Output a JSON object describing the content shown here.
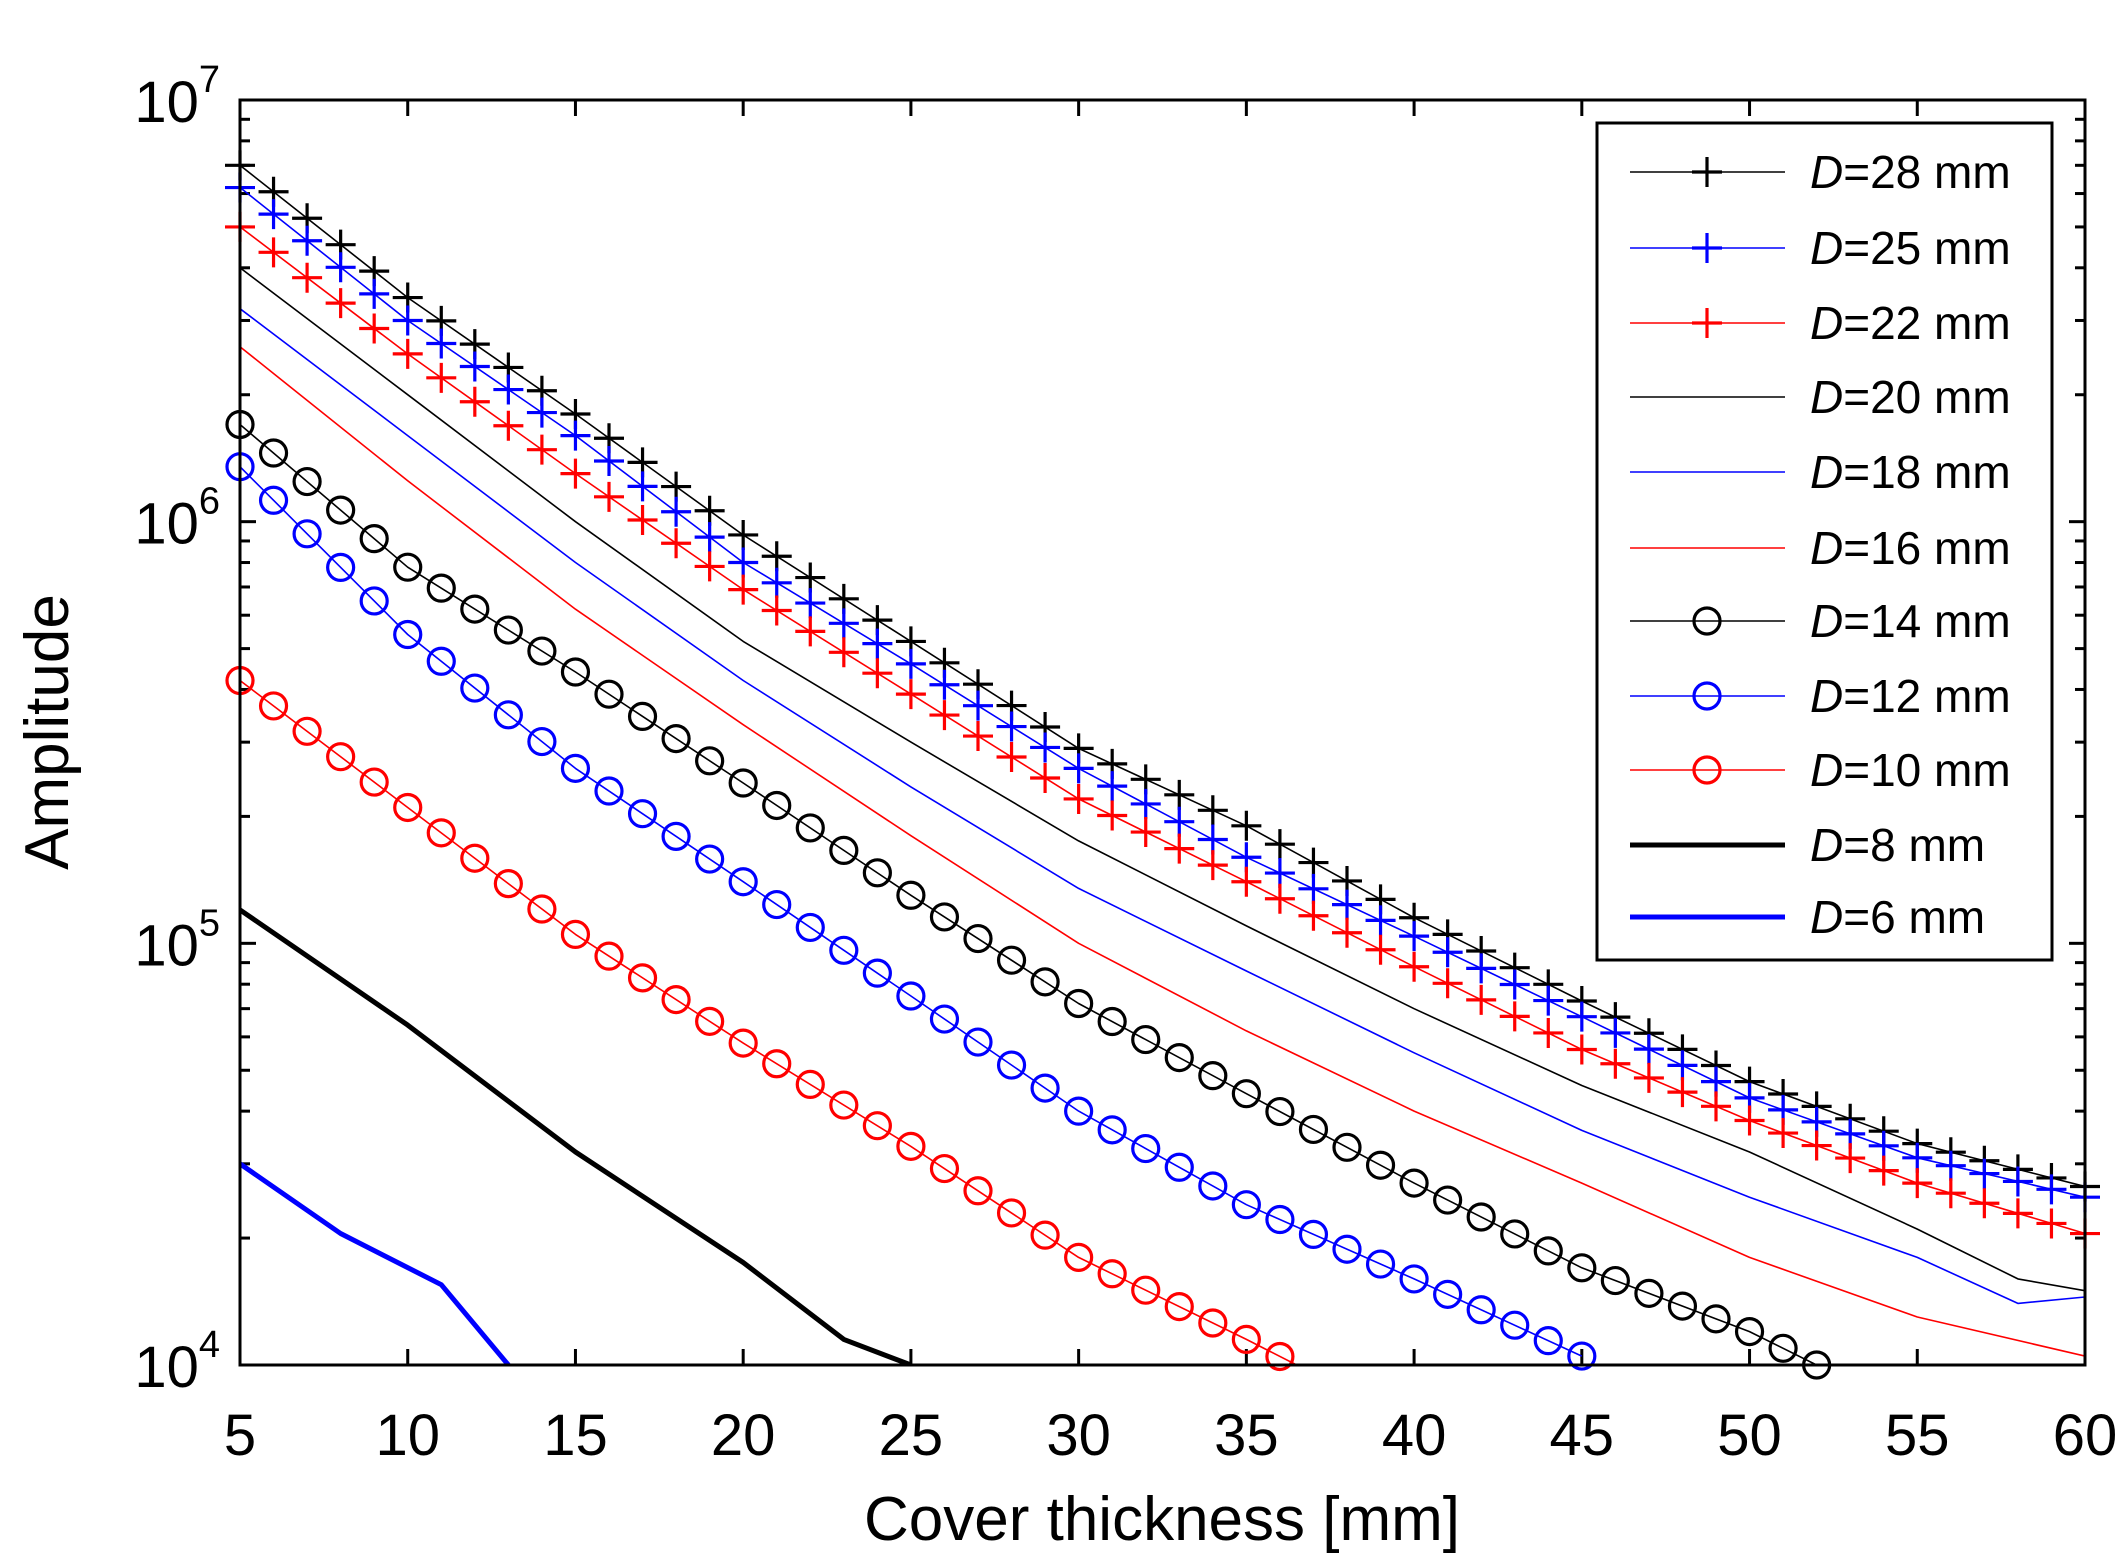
{
  "chart_data": {
    "type": "line",
    "title": "",
    "xlabel": "Cover thickness [mm]",
    "ylabel": "Amplitude",
    "xlim": [
      5,
      60
    ],
    "ylim": [
      10000,
      10000000
    ],
    "yscale": "log",
    "x_ticks": [
      "5",
      "10",
      "15",
      "20",
      "25",
      "30",
      "35",
      "40",
      "45",
      "50",
      "55",
      "60"
    ],
    "y_ticks": [
      {
        "base": "10",
        "exp": "4",
        "value": 10000
      },
      {
        "base": "10",
        "exp": "5",
        "value": 100000
      },
      {
        "base": "10",
        "exp": "6",
        "value": 1000000
      },
      {
        "base": "10",
        "exp": "7",
        "value": 10000000
      }
    ],
    "grid": false,
    "legend_position": "top-right",
    "x_step": 1,
    "series": [
      {
        "name": "D=28 mm",
        "legend_var": "D",
        "legend_rest": "=28 mm",
        "color": "#000000",
        "marker": "plus",
        "line": "thin",
        "anchors": [
          [
            5,
            7000000
          ],
          [
            10,
            3400000
          ],
          [
            15,
            1800000
          ],
          [
            20,
            930000
          ],
          [
            25,
            520000
          ],
          [
            30,
            290000
          ],
          [
            35,
            190000
          ],
          [
            40,
            115000
          ],
          [
            45,
            73000
          ],
          [
            50,
            47000
          ],
          [
            55,
            33500
          ],
          [
            60,
            26500
          ]
        ]
      },
      {
        "name": "D=25 mm",
        "legend_var": "D",
        "legend_rest": "=25 mm",
        "color": "#0000ff",
        "marker": "plus",
        "line": "thin",
        "anchors": [
          [
            5,
            6200000
          ],
          [
            10,
            3000000
          ],
          [
            15,
            1600000
          ],
          [
            20,
            800000
          ],
          [
            25,
            460000
          ],
          [
            30,
            260000
          ],
          [
            35,
            160000
          ],
          [
            40,
            104000
          ],
          [
            45,
            67000
          ],
          [
            50,
            43000
          ],
          [
            55,
            31000
          ],
          [
            60,
            25000
          ]
        ]
      },
      {
        "name": "D=22 mm",
        "legend_var": "D",
        "legend_rest": "=22 mm",
        "color": "#ff0000",
        "marker": "plus",
        "line": "thin",
        "anchors": [
          [
            5,
            5000000
          ],
          [
            10,
            2500000
          ],
          [
            15,
            1300000
          ],
          [
            20,
            690000
          ],
          [
            25,
            390000
          ],
          [
            30,
            220000
          ],
          [
            35,
            140000
          ],
          [
            40,
            88000
          ],
          [
            45,
            56000
          ],
          [
            50,
            38000
          ],
          [
            55,
            27000
          ],
          [
            60,
            20500
          ]
        ]
      },
      {
        "name": "D=20 mm",
        "legend_var": "D",
        "legend_rest": "=20 mm",
        "color": "#000000",
        "marker": "none",
        "line": "thin",
        "anchors": [
          [
            5,
            4000000
          ],
          [
            10,
            2000000
          ],
          [
            15,
            1000000
          ],
          [
            20,
            520000
          ],
          [
            25,
            300000
          ],
          [
            30,
            175000
          ],
          [
            35,
            110000
          ],
          [
            40,
            70000
          ],
          [
            45,
            46000
          ],
          [
            50,
            32000
          ],
          [
            55,
            21000
          ],
          [
            58,
            16000
          ],
          [
            60,
            15000
          ]
        ]
      },
      {
        "name": "D=18 mm",
        "legend_var": "D",
        "legend_rest": "=18 mm",
        "color": "#0000ff",
        "marker": "none",
        "line": "thin",
        "anchors": [
          [
            5,
            3200000
          ],
          [
            10,
            1600000
          ],
          [
            15,
            800000
          ],
          [
            20,
            420000
          ],
          [
            25,
            235000
          ],
          [
            30,
            135000
          ],
          [
            35,
            86000
          ],
          [
            40,
            55000
          ],
          [
            45,
            36000
          ],
          [
            50,
            25000
          ],
          [
            55,
            18000
          ],
          [
            58,
            14000
          ],
          [
            60,
            14500
          ]
        ]
      },
      {
        "name": "D=16 mm",
        "legend_var": "D",
        "legend_rest": "=16 mm",
        "color": "#ff0000",
        "marker": "none",
        "line": "thin",
        "anchors": [
          [
            5,
            2600000
          ],
          [
            10,
            1250000
          ],
          [
            15,
            620000
          ],
          [
            20,
            330000
          ],
          [
            25,
            180000
          ],
          [
            30,
            100000
          ],
          [
            35,
            62000
          ],
          [
            40,
            40000
          ],
          [
            45,
            27000
          ],
          [
            50,
            18000
          ],
          [
            55,
            13000
          ],
          [
            60,
            10500
          ]
        ]
      },
      {
        "name": "D=14 mm",
        "legend_var": "D",
        "legend_rest": "=14 mm",
        "color": "#000000",
        "marker": "circle",
        "line": "thin",
        "anchors": [
          [
            5,
            1700000
          ],
          [
            10,
            780000
          ],
          [
            15,
            440000
          ],
          [
            20,
            240000
          ],
          [
            25,
            130000
          ],
          [
            30,
            72000
          ],
          [
            35,
            44000
          ],
          [
            40,
            27000
          ],
          [
            45,
            17000
          ],
          [
            50,
            12000
          ],
          [
            52,
            10000
          ]
        ]
      },
      {
        "name": "D=12 mm",
        "legend_var": "D",
        "legend_rest": "=12 mm",
        "color": "#0000ff",
        "marker": "circle",
        "line": "thin",
        "anchors": [
          [
            5,
            1350000
          ],
          [
            10,
            540000
          ],
          [
            15,
            260000
          ],
          [
            20,
            140000
          ],
          [
            25,
            75000
          ],
          [
            30,
            40000
          ],
          [
            35,
            24000
          ],
          [
            40,
            16000
          ],
          [
            45,
            10500
          ]
        ]
      },
      {
        "name": "D=10 mm",
        "legend_var": "D",
        "legend_rest": "=10 mm",
        "color": "#ff0000",
        "marker": "circle",
        "line": "thin",
        "anchors": [
          [
            5,
            420000
          ],
          [
            10,
            210000
          ],
          [
            15,
            105000
          ],
          [
            20,
            58000
          ],
          [
            25,
            33000
          ],
          [
            30,
            18000
          ],
          [
            35,
            11500
          ],
          [
            36.5,
            10000
          ]
        ]
      },
      {
        "name": "D=8 mm",
        "legend_var": "D",
        "legend_rest": "=8 mm",
        "color": "#000000",
        "marker": "none",
        "line": "thick",
        "anchors": [
          [
            5,
            120000
          ],
          [
            10,
            64000
          ],
          [
            15,
            32000
          ],
          [
            20,
            17500
          ],
          [
            23,
            11500
          ],
          [
            25,
            10000
          ]
        ]
      },
      {
        "name": "D=6 mm",
        "legend_var": "D",
        "legend_rest": "=6 mm",
        "color": "#0000ff",
        "marker": "none",
        "line": "thick",
        "anchors": [
          [
            5,
            30000
          ],
          [
            8,
            20500
          ],
          [
            11,
            15500
          ],
          [
            13,
            10000
          ]
        ]
      }
    ]
  }
}
